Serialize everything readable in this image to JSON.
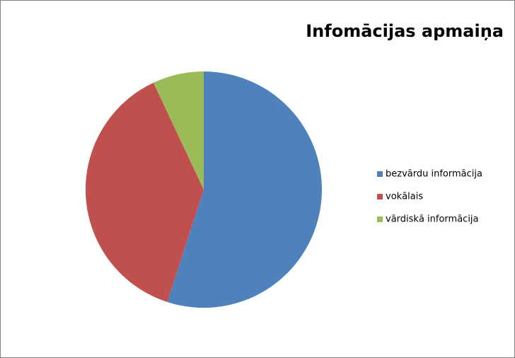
{
  "chart_data": {
    "type": "pie",
    "title": "Infomācijas apmaiņa",
    "categories": [
      "bezvārdu informācija",
      "vokālais",
      "vārdiskā informācija"
    ],
    "values": [
      55,
      38,
      7
    ],
    "colors": [
      "#4f81bd",
      "#c0504d",
      "#9bbb59"
    ],
    "legend": "right"
  }
}
